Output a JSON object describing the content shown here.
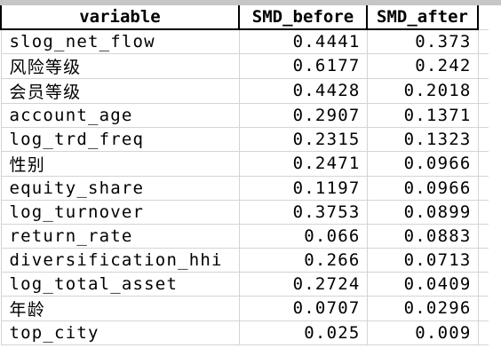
{
  "table": {
    "headers": [
      "variable",
      "SMD_before",
      "SMD_after"
    ],
    "rows": [
      {
        "variable": "slog_net_flow",
        "smd_before": "0.4441",
        "smd_after": "0.373"
      },
      {
        "variable": "风险等级",
        "smd_before": "0.6177",
        "smd_after": "0.242"
      },
      {
        "variable": "会员等级",
        "smd_before": "0.4428",
        "smd_after": "0.2018"
      },
      {
        "variable": "account_age",
        "smd_before": "0.2907",
        "smd_after": "0.1371"
      },
      {
        "variable": "log_trd_freq",
        "smd_before": "0.2315",
        "smd_after": "0.1323"
      },
      {
        "variable": "性别",
        "smd_before": "0.2471",
        "smd_after": "0.0966"
      },
      {
        "variable": "equity_share",
        "smd_before": "0.1197",
        "smd_after": "0.0966"
      },
      {
        "variable": "log_turnover",
        "smd_before": "0.3753",
        "smd_after": "0.0899"
      },
      {
        "variable": "return_rate",
        "smd_before": "0.066",
        "smd_after": "0.0883"
      },
      {
        "variable": "diversification_hhi",
        "smd_before": "0.266",
        "smd_after": "0.0713"
      },
      {
        "variable": "log_total_asset",
        "smd_before": "0.2724",
        "smd_after": "0.0409"
      },
      {
        "variable": "年龄",
        "smd_before": "0.0707",
        "smd_after": "0.0296"
      },
      {
        "variable": "top_city",
        "smd_before": "0.025",
        "smd_after": "0.009"
      }
    ]
  }
}
